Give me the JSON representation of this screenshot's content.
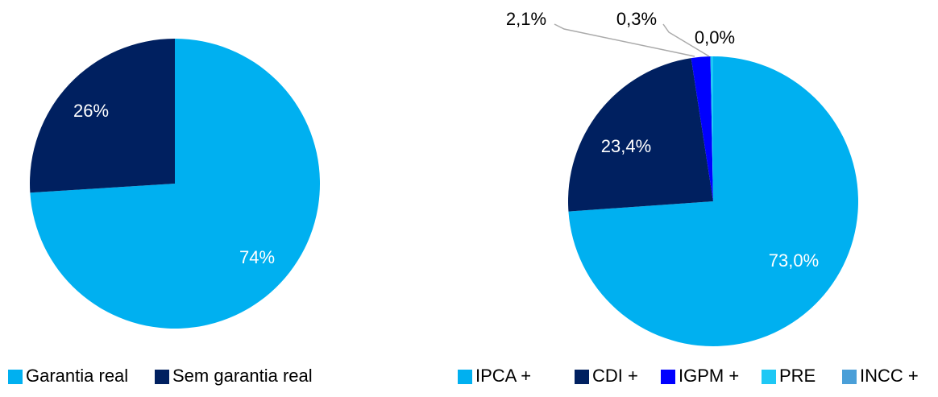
{
  "chart_data": [
    {
      "type": "pie",
      "categories": [
        "Garantia real",
        "Sem garantia real"
      ],
      "values": [
        74,
        26
      ],
      "value_labels": [
        "74%",
        "26%"
      ],
      "colors": [
        "#00B0F0",
        "#002060"
      ]
    },
    {
      "type": "pie",
      "categories": [
        "IPCA +",
        "CDI +",
        "IGPM +",
        "PRE",
        "INCC +"
      ],
      "values": [
        73.0,
        23.4,
        2.1,
        0.3,
        0.0
      ],
      "value_labels": [
        "73,0%",
        "23,4%",
        "2,1%",
        "0,3%",
        "0,0%"
      ],
      "colors": [
        "#00B0F0",
        "#002060",
        "#0000FF",
        "#1EC8F5",
        "#4A9FD8"
      ]
    }
  ]
}
